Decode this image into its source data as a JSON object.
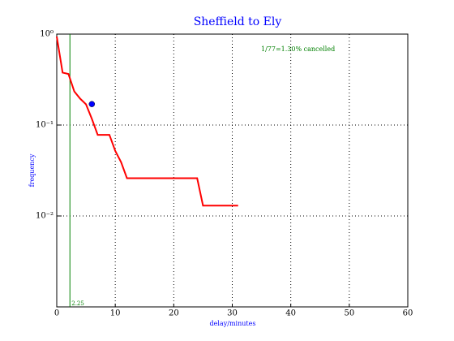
{
  "chart_data": {
    "type": "line",
    "title": "Sheffield to Ely",
    "xlabel": "delay/minutes",
    "ylabel": "frequency",
    "x": [
      0,
      1,
      2,
      3,
      4,
      5,
      6,
      7,
      9,
      10,
      11,
      12,
      24,
      25,
      31
    ],
    "series": [
      {
        "color": "#ff0000",
        "values": [
          0.94,
          0.377,
          0.364,
          0.234,
          0.195,
          0.169,
          0.117,
          0.078,
          0.078,
          0.052,
          0.039,
          0.026,
          0.026,
          0.013,
          0.013
        ]
      }
    ],
    "marker": {
      "x": 6,
      "y": 0.17,
      "color": "#0000ff"
    },
    "vline": {
      "x": 2.25,
      "color": "#008000"
    },
    "annotation": {
      "text": "1/77=1.30% cancelled",
      "color": "#008000"
    },
    "xlim": [
      0,
      60
    ],
    "xticks": [
      0,
      10,
      20,
      30,
      40,
      50,
      60
    ],
    "ylim": [
      0.001,
      1
    ],
    "yscale": "log",
    "yticks": [
      {
        "value": 1,
        "label": "10⁰"
      },
      {
        "value": 0.1,
        "label": "10⁻¹"
      },
      {
        "value": 0.01,
        "label": "10⁻²"
      }
    ],
    "grid": true
  }
}
